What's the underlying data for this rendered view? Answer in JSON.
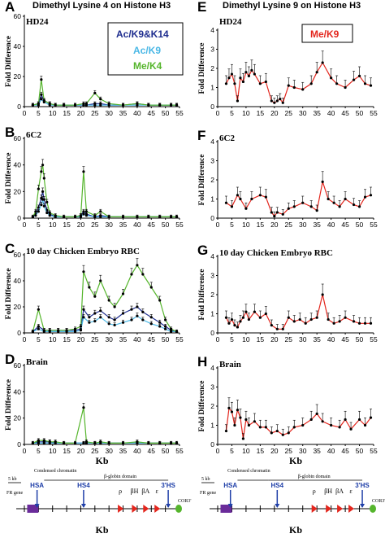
{
  "headers": {
    "left": "Dimethyl Lysine 4 on Histone H3",
    "right": "Dimethyl  Lysine 9 on Histone H3"
  },
  "legend_left": {
    "items": [
      {
        "label": "Ac/K9&K14",
        "color": "#1f2e8f"
      },
      {
        "label": "Ac/K9",
        "color": "#4bb8e6"
      },
      {
        "label": "Me/K4",
        "color": "#55b52c"
      }
    ]
  },
  "legend_right": {
    "items": [
      {
        "label": "Me/K9",
        "color": "#e3261d"
      }
    ]
  },
  "ylabel": "Fold Difference",
  "xlabel": "Kb",
  "map": {
    "scale_label": "5 kb",
    "domain_labels": [
      "Condensed chromatin",
      "β-globin domain"
    ],
    "fr_gene": "FR gene",
    "cor3": "COR3'",
    "hs_labels": [
      "HSA",
      "HS4",
      "3'HS"
    ],
    "globin_labels": [
      "ρ",
      "βH",
      "βA",
      "ε"
    ],
    "xlabel": "Kb"
  },
  "chart_data": [
    {
      "type": "line",
      "panel": "A",
      "title": "HD24",
      "ylim": [
        0,
        60
      ],
      "yticks": [
        0,
        20,
        40,
        60
      ],
      "xlim": [
        0,
        55
      ],
      "xticks": [
        0,
        5,
        10,
        15,
        20,
        25,
        30,
        35,
        40,
        45,
        50,
        55
      ],
      "series": [
        {
          "legend": "Ac/K9&K14",
          "color": "#1f2e8f",
          "x": [
            3,
            5,
            6,
            7,
            9,
            11,
            14,
            18,
            21,
            22,
            25,
            27,
            30,
            35,
            40,
            44,
            48,
            52,
            54
          ],
          "y": [
            1,
            2,
            8,
            4,
            2,
            1,
            1,
            1,
            1,
            1,
            2,
            2,
            1,
            1,
            2,
            1,
            1,
            1,
            1
          ]
        },
        {
          "legend": "Ac/K9",
          "color": "#4bb8e6",
          "x": [
            3,
            5,
            6,
            7,
            9,
            11,
            14,
            18,
            21,
            22,
            25,
            27,
            30,
            35,
            40,
            44,
            48,
            52,
            54
          ],
          "y": [
            1,
            1,
            5,
            3,
            1,
            1,
            1,
            1,
            1,
            1,
            1,
            1,
            1,
            1,
            1,
            1,
            1,
            1,
            1
          ]
        },
        {
          "legend": "Me/K4",
          "color": "#55b52c",
          "x": [
            3,
            5,
            6,
            7,
            9,
            11,
            14,
            18,
            21,
            22,
            25,
            27,
            30,
            35,
            40,
            44,
            48,
            52,
            54
          ],
          "y": [
            1,
            2,
            18,
            4,
            2,
            1,
            1,
            1,
            2,
            2,
            9,
            5,
            2,
            1,
            2,
            1,
            1,
            1,
            1
          ]
        }
      ]
    },
    {
      "type": "line",
      "panel": "B",
      "title": "6C2",
      "ylim": [
        0,
        60
      ],
      "yticks": [
        0,
        20,
        40,
        60
      ],
      "xlim": [
        0,
        55
      ],
      "xticks": [
        0,
        5,
        10,
        15,
        20,
        25,
        30,
        35,
        40,
        45,
        50,
        55
      ],
      "series": [
        {
          "legend": "Ac/K9&K14",
          "color": "#1f2e8f",
          "x": [
            3,
            4,
            5,
            6,
            6.5,
            7,
            8,
            9,
            11,
            14,
            18,
            20,
            21,
            22,
            25,
            27,
            30,
            35,
            40,
            44,
            48,
            52,
            54
          ],
          "y": [
            1,
            3,
            8,
            15,
            20,
            14,
            6,
            3,
            1,
            1,
            1,
            2,
            5,
            3,
            1,
            2,
            1,
            1,
            1,
            1,
            1,
            1,
            1
          ]
        },
        {
          "legend": "Ac/K9",
          "color": "#4bb8e6",
          "x": [
            3,
            4,
            5,
            6,
            6.5,
            7,
            8,
            9,
            11,
            14,
            18,
            20,
            21,
            22,
            25,
            27,
            30,
            35,
            40,
            44,
            48,
            52,
            54
          ],
          "y": [
            1,
            2,
            5,
            10,
            14,
            9,
            4,
            2,
            1,
            1,
            1,
            1,
            3,
            2,
            1,
            1,
            1,
            1,
            1,
            1,
            1,
            1,
            1
          ]
        },
        {
          "legend": "Me/K4",
          "color": "#55b52c",
          "x": [
            3,
            4,
            5,
            6,
            6.5,
            7,
            8,
            9,
            11,
            14,
            18,
            20,
            21,
            22,
            25,
            27,
            30,
            35,
            40,
            44,
            48,
            52,
            54
          ],
          "y": [
            1,
            5,
            22,
            35,
            40,
            30,
            12,
            4,
            2,
            1,
            1,
            2,
            35,
            5,
            2,
            5,
            1,
            1,
            1,
            1,
            1,
            1,
            1
          ]
        }
      ]
    },
    {
      "type": "line",
      "panel": "C",
      "title": "10 day Chicken Embryo RBC",
      "ylim": [
        0,
        60
      ],
      "yticks": [
        0,
        20,
        40,
        60
      ],
      "xlim": [
        0,
        55
      ],
      "xticks": [
        0,
        5,
        10,
        15,
        20,
        25,
        30,
        35,
        40,
        45,
        50,
        55
      ],
      "series": [
        {
          "legend": "Ac/K9&K14",
          "color": "#1f2e8f",
          "x": [
            3,
            5,
            7,
            9,
            12,
            15,
            18,
            20,
            21,
            23,
            25,
            27,
            30,
            32,
            35,
            38,
            40,
            42,
            45,
            48,
            50,
            52,
            54
          ],
          "y": [
            1,
            5,
            2,
            2,
            2,
            2,
            2,
            3,
            18,
            12,
            15,
            17,
            12,
            10,
            15,
            18,
            20,
            16,
            12,
            8,
            5,
            2,
            1
          ]
        },
        {
          "legend": "Ac/K9",
          "color": "#4bb8e6",
          "x": [
            3,
            5,
            7,
            9,
            12,
            15,
            18,
            20,
            21,
            23,
            25,
            27,
            30,
            32,
            35,
            38,
            40,
            42,
            45,
            48,
            50,
            52,
            54
          ],
          "y": [
            1,
            3,
            1,
            1,
            1,
            1,
            1,
            2,
            12,
            8,
            9,
            12,
            7,
            6,
            8,
            10,
            13,
            10,
            7,
            5,
            3,
            1,
            1
          ]
        },
        {
          "legend": "Me/K4",
          "color": "#55b52c",
          "x": [
            3,
            5,
            7,
            9,
            12,
            15,
            18,
            20,
            21,
            23,
            25,
            27,
            30,
            32,
            35,
            38,
            40,
            42,
            45,
            48,
            50,
            52,
            54
          ],
          "y": [
            1,
            18,
            2,
            2,
            2,
            2,
            3,
            5,
            47,
            35,
            28,
            40,
            25,
            20,
            30,
            45,
            52,
            45,
            35,
            25,
            10,
            3,
            1
          ]
        }
      ]
    },
    {
      "type": "line",
      "panel": "D",
      "title": "Brain",
      "ylim": [
        0,
        60
      ],
      "yticks": [
        0,
        20,
        40,
        60
      ],
      "xlim": [
        0,
        55
      ],
      "xticks": [
        0,
        5,
        10,
        15,
        20,
        25,
        30,
        35,
        40,
        45,
        50,
        55
      ],
      "series": [
        {
          "legend": "Ac/K9&K14",
          "color": "#1f2e8f",
          "x": [
            3,
            5,
            7,
            9,
            11,
            14,
            18,
            21,
            22,
            25,
            27,
            30,
            35,
            40,
            44,
            48,
            52,
            54
          ],
          "y": [
            1,
            2,
            2,
            2,
            1,
            1,
            1,
            1,
            1,
            1,
            1,
            1,
            1,
            1,
            1,
            1,
            1,
            1
          ]
        },
        {
          "legend": "Ac/K9",
          "color": "#4bb8e6",
          "x": [
            3,
            5,
            7,
            9,
            11,
            14,
            18,
            21,
            22,
            25,
            27,
            30,
            35,
            40,
            44,
            48,
            52,
            54
          ],
          "y": [
            1,
            1,
            1,
            1,
            1,
            1,
            1,
            1,
            1,
            1,
            1,
            1,
            1,
            1,
            1,
            1,
            1,
            1
          ]
        },
        {
          "legend": "Me/K4",
          "color": "#55b52c",
          "x": [
            3,
            5,
            7,
            9,
            11,
            14,
            18,
            21,
            22,
            25,
            27,
            30,
            35,
            40,
            44,
            48,
            52,
            54
          ],
          "y": [
            1,
            3,
            3,
            2,
            2,
            1,
            1,
            28,
            2,
            1,
            2,
            1,
            1,
            2,
            1,
            1,
            1,
            1
          ]
        }
      ]
    },
    {
      "type": "line",
      "panel": "E",
      "title": "HD24",
      "ylim": [
        0,
        4
      ],
      "yticks": [
        0,
        1,
        2,
        3,
        4
      ],
      "xlim": [
        0,
        55
      ],
      "xticks": [
        0,
        5,
        10,
        15,
        20,
        25,
        30,
        35,
        40,
        45,
        50,
        55
      ],
      "series": [
        {
          "legend": "Me/K9",
          "color": "#e3261d",
          "x": [
            3,
            4,
            5,
            6,
            7,
            8,
            9,
            10,
            11,
            12,
            13,
            15,
            17,
            19,
            20,
            21,
            22,
            23,
            25,
            27,
            30,
            33,
            35,
            37,
            40,
            42,
            45,
            48,
            50,
            52,
            54
          ],
          "y": [
            1.2,
            1.5,
            1.7,
            1.2,
            0.3,
            1.5,
            1.3,
            1.8,
            1.6,
            1.9,
            1.7,
            1.2,
            1.3,
            0.3,
            0.2,
            0.3,
            0.4,
            0.2,
            1.1,
            1.0,
            0.9,
            1.2,
            1.8,
            2.3,
            1.5,
            1.2,
            1.0,
            1.4,
            1.6,
            1.2,
            1.1
          ]
        }
      ]
    },
    {
      "type": "line",
      "panel": "F",
      "title": "6C2",
      "ylim": [
        0,
        4
      ],
      "yticks": [
        0,
        1,
        2,
        3,
        4
      ],
      "xlim": [
        0,
        55
      ],
      "xticks": [
        0,
        5,
        10,
        15,
        20,
        25,
        30,
        35,
        40,
        45,
        50,
        55
      ],
      "series": [
        {
          "legend": "Me/K9",
          "color": "#e3261d",
          "x": [
            3,
            5,
            7,
            8,
            10,
            12,
            15,
            17,
            19,
            20,
            21,
            23,
            25,
            27,
            30,
            33,
            35,
            37,
            39,
            41,
            43,
            45,
            48,
            50,
            52,
            54
          ],
          "y": [
            0.8,
            0.6,
            1.2,
            1.0,
            0.5,
            1.0,
            1.2,
            1.1,
            0.3,
            0.1,
            0.3,
            0.2,
            0.5,
            0.6,
            0.8,
            0.6,
            0.4,
            1.9,
            1.0,
            0.8,
            0.6,
            1.0,
            0.7,
            0.6,
            1.1,
            1.2
          ]
        }
      ]
    },
    {
      "type": "line",
      "panel": "G",
      "title": "10 day Chicken Embryo RBC",
      "ylim": [
        0,
        4
      ],
      "yticks": [
        0,
        1,
        2,
        3,
        4
      ],
      "xlim": [
        0,
        55
      ],
      "xticks": [
        0,
        5,
        10,
        15,
        20,
        25,
        30,
        35,
        40,
        45,
        50,
        55
      ],
      "series": [
        {
          "legend": "Me/K9",
          "color": "#e3261d",
          "x": [
            3,
            4,
            5,
            6,
            7,
            8,
            9,
            10,
            11,
            13,
            15,
            17,
            19,
            21,
            23,
            25,
            27,
            29,
            31,
            33,
            35,
            37,
            39,
            41,
            43,
            45,
            48,
            50,
            52,
            54
          ],
          "y": [
            0.8,
            0.5,
            0.7,
            0.4,
            0.3,
            0.6,
            0.8,
            1.1,
            0.7,
            1.1,
            0.8,
            1.0,
            0.4,
            0.2,
            0.2,
            0.8,
            0.6,
            0.7,
            0.5,
            0.7,
            0.8,
            2.0,
            0.7,
            0.5,
            0.6,
            0.8,
            0.6,
            0.5,
            0.5,
            0.5
          ]
        }
      ]
    },
    {
      "type": "line",
      "panel": "H",
      "title": "Brain",
      "ylim": [
        0,
        4
      ],
      "yticks": [
        0,
        1,
        2,
        3,
        4
      ],
      "xlim": [
        0,
        55
      ],
      "xticks": [
        0,
        5,
        10,
        15,
        20,
        25,
        30,
        35,
        40,
        45,
        50,
        55
      ],
      "series": [
        {
          "legend": "Me/K9",
          "color": "#e3261d",
          "x": [
            3,
            4,
            5,
            6,
            7,
            8,
            9,
            10,
            11,
            13,
            15,
            17,
            19,
            21,
            23,
            25,
            27,
            30,
            33,
            35,
            37,
            40,
            43,
            45,
            47,
            50,
            52,
            54
          ],
          "y": [
            0.7,
            1.9,
            1.7,
            1.0,
            1.8,
            1.4,
            0.3,
            1.3,
            1.0,
            1.2,
            0.9,
            0.9,
            0.6,
            0.7,
            0.5,
            0.6,
            0.9,
            1.0,
            1.3,
            1.6,
            1.2,
            1.0,
            0.9,
            1.3,
            0.8,
            1.3,
            1.0,
            1.4
          ]
        }
      ]
    }
  ]
}
